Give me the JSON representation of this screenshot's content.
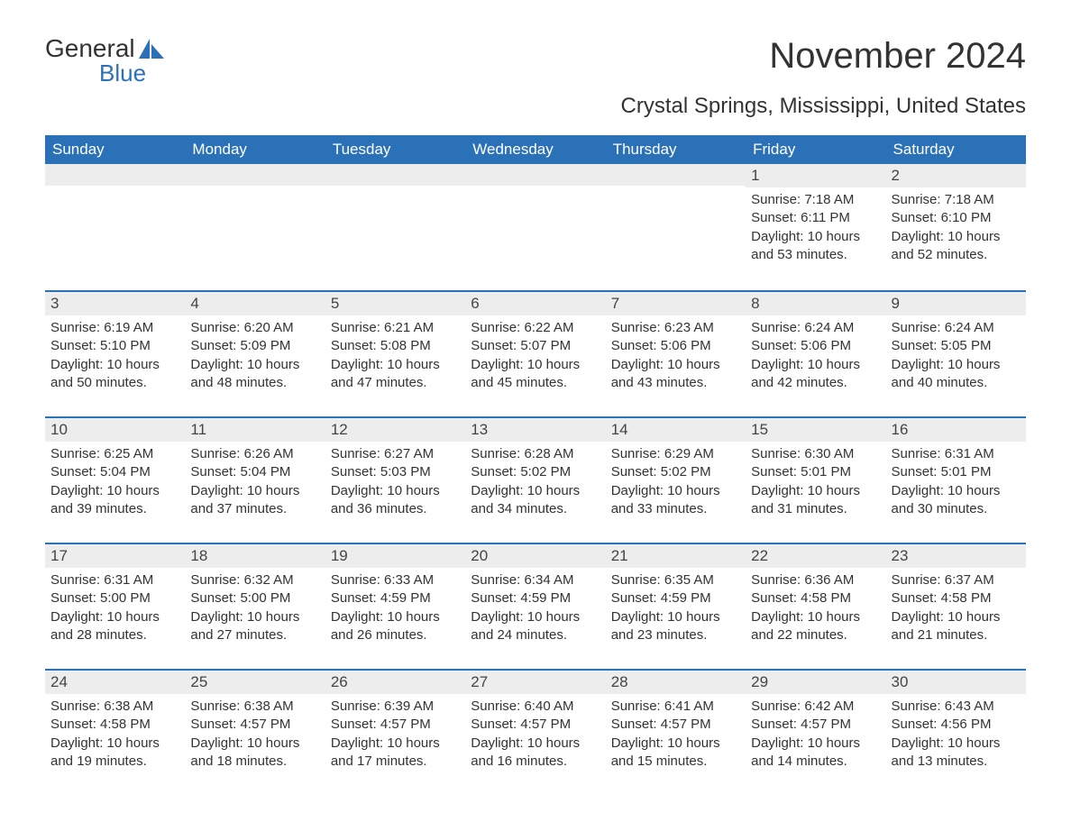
{
  "logo": {
    "word1": "General",
    "word2": "Blue"
  },
  "title": "November 2024",
  "subtitle": "Crystal Springs, Mississippi, United States",
  "colors": {
    "header_bg": "#2b71b8",
    "daynum_bg": "#ededed",
    "text": "#333333",
    "accent": "#2b71b8",
    "background": "#ffffff"
  },
  "day_headers": [
    "Sunday",
    "Monday",
    "Tuesday",
    "Wednesday",
    "Thursday",
    "Friday",
    "Saturday"
  ],
  "labels": {
    "sunrise": "Sunrise:",
    "sunset": "Sunset:",
    "daylight": "Daylight:"
  },
  "weeks": [
    [
      null,
      null,
      null,
      null,
      null,
      {
        "n": "1",
        "sr": "7:18 AM",
        "ss": "6:11 PM",
        "dl": "10 hours and 53 minutes."
      },
      {
        "n": "2",
        "sr": "7:18 AM",
        "ss": "6:10 PM",
        "dl": "10 hours and 52 minutes."
      }
    ],
    [
      {
        "n": "3",
        "sr": "6:19 AM",
        "ss": "5:10 PM",
        "dl": "10 hours and 50 minutes."
      },
      {
        "n": "4",
        "sr": "6:20 AM",
        "ss": "5:09 PM",
        "dl": "10 hours and 48 minutes."
      },
      {
        "n": "5",
        "sr": "6:21 AM",
        "ss": "5:08 PM",
        "dl": "10 hours and 47 minutes."
      },
      {
        "n": "6",
        "sr": "6:22 AM",
        "ss": "5:07 PM",
        "dl": "10 hours and 45 minutes."
      },
      {
        "n": "7",
        "sr": "6:23 AM",
        "ss": "5:06 PM",
        "dl": "10 hours and 43 minutes."
      },
      {
        "n": "8",
        "sr": "6:24 AM",
        "ss": "5:06 PM",
        "dl": "10 hours and 42 minutes."
      },
      {
        "n": "9",
        "sr": "6:24 AM",
        "ss": "5:05 PM",
        "dl": "10 hours and 40 minutes."
      }
    ],
    [
      {
        "n": "10",
        "sr": "6:25 AM",
        "ss": "5:04 PM",
        "dl": "10 hours and 39 minutes."
      },
      {
        "n": "11",
        "sr": "6:26 AM",
        "ss": "5:04 PM",
        "dl": "10 hours and 37 minutes."
      },
      {
        "n": "12",
        "sr": "6:27 AM",
        "ss": "5:03 PM",
        "dl": "10 hours and 36 minutes."
      },
      {
        "n": "13",
        "sr": "6:28 AM",
        "ss": "5:02 PM",
        "dl": "10 hours and 34 minutes."
      },
      {
        "n": "14",
        "sr": "6:29 AM",
        "ss": "5:02 PM",
        "dl": "10 hours and 33 minutes."
      },
      {
        "n": "15",
        "sr": "6:30 AM",
        "ss": "5:01 PM",
        "dl": "10 hours and 31 minutes."
      },
      {
        "n": "16",
        "sr": "6:31 AM",
        "ss": "5:01 PM",
        "dl": "10 hours and 30 minutes."
      }
    ],
    [
      {
        "n": "17",
        "sr": "6:31 AM",
        "ss": "5:00 PM",
        "dl": "10 hours and 28 minutes."
      },
      {
        "n": "18",
        "sr": "6:32 AM",
        "ss": "5:00 PM",
        "dl": "10 hours and 27 minutes."
      },
      {
        "n": "19",
        "sr": "6:33 AM",
        "ss": "4:59 PM",
        "dl": "10 hours and 26 minutes."
      },
      {
        "n": "20",
        "sr": "6:34 AM",
        "ss": "4:59 PM",
        "dl": "10 hours and 24 minutes."
      },
      {
        "n": "21",
        "sr": "6:35 AM",
        "ss": "4:59 PM",
        "dl": "10 hours and 23 minutes."
      },
      {
        "n": "22",
        "sr": "6:36 AM",
        "ss": "4:58 PM",
        "dl": "10 hours and 22 minutes."
      },
      {
        "n": "23",
        "sr": "6:37 AM",
        "ss": "4:58 PM",
        "dl": "10 hours and 21 minutes."
      }
    ],
    [
      {
        "n": "24",
        "sr": "6:38 AM",
        "ss": "4:58 PM",
        "dl": "10 hours and 19 minutes."
      },
      {
        "n": "25",
        "sr": "6:38 AM",
        "ss": "4:57 PM",
        "dl": "10 hours and 18 minutes."
      },
      {
        "n": "26",
        "sr": "6:39 AM",
        "ss": "4:57 PM",
        "dl": "10 hours and 17 minutes."
      },
      {
        "n": "27",
        "sr": "6:40 AM",
        "ss": "4:57 PM",
        "dl": "10 hours and 16 minutes."
      },
      {
        "n": "28",
        "sr": "6:41 AM",
        "ss": "4:57 PM",
        "dl": "10 hours and 15 minutes."
      },
      {
        "n": "29",
        "sr": "6:42 AM",
        "ss": "4:57 PM",
        "dl": "10 hours and 14 minutes."
      },
      {
        "n": "30",
        "sr": "6:43 AM",
        "ss": "4:56 PM",
        "dl": "10 hours and 13 minutes."
      }
    ]
  ]
}
